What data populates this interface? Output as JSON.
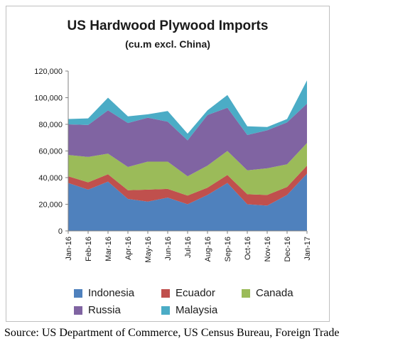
{
  "chart_data": {
    "type": "area",
    "stacked": true,
    "title": "US Hardwood Plywood Imports",
    "subtitle": "(cu.m excl. China)",
    "xlabel": "",
    "ylabel": "",
    "ylim": [
      0,
      120000
    ],
    "yticks": [
      "0",
      "20,000",
      "40,000",
      "60,000",
      "80,000",
      "100,000",
      "120,000"
    ],
    "grid": false,
    "legend_position": "bottom",
    "categories": [
      "Jan-16",
      "Feb-16",
      "Mar-16",
      "Apr-16",
      "May-16",
      "Jun-16",
      "Jul-16",
      "Aug-16",
      "Sep-16",
      "Oct-16",
      "Nov-16",
      "Dec-16",
      "Jan-17"
    ],
    "series": [
      {
        "name": "Indonesia",
        "color": "#4f81bd",
        "values": [
          36000,
          31000,
          37000,
          24000,
          22000,
          25000,
          20000,
          27000,
          36000,
          20000,
          19000,
          27000,
          43000
        ]
      },
      {
        "name": "Ecuador",
        "color": "#c0504d",
        "values": [
          5000,
          5500,
          5500,
          6500,
          9000,
          6500,
          6500,
          5500,
          6000,
          7500,
          8000,
          6000,
          6000
        ]
      },
      {
        "name": "Canada",
        "color": "#9bbb59",
        "values": [
          16000,
          19000,
          15500,
          17500,
          21000,
          20500,
          14500,
          16500,
          18000,
          18000,
          20000,
          17000,
          17000
        ]
      },
      {
        "name": "Russia",
        "color": "#8064a2",
        "values": [
          23000,
          24000,
          32500,
          33000,
          33000,
          30000,
          27000,
          38000,
          32500,
          26500,
          28500,
          31500,
          29500
        ]
      },
      {
        "name": "Malaysia",
        "color": "#4bacc6",
        "values": [
          4000,
          5000,
          9500,
          5000,
          2500,
          8000,
          5000,
          3500,
          9500,
          6500,
          2500,
          2500,
          17500
        ]
      }
    ]
  },
  "source_text": "Source: US Department of Commerce, US Census Bureau, Foreign Trade"
}
